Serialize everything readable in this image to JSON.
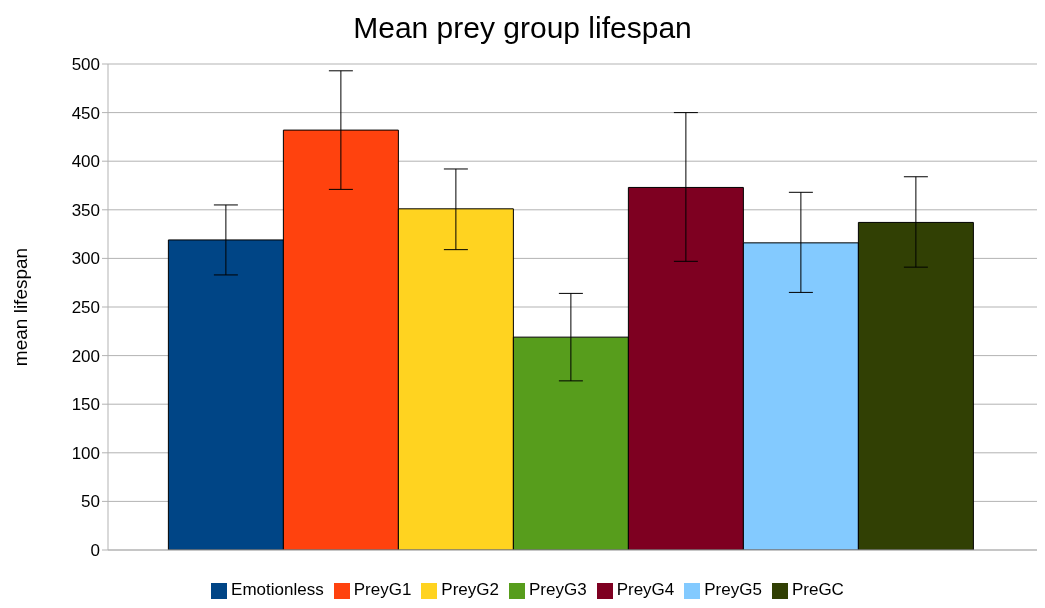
{
  "chart_data": {
    "type": "bar",
    "title": "Mean prey group lifespan",
    "ylabel": "mean lifespan",
    "categories": [
      null
    ],
    "series": [
      {
        "name": "Emotionless",
        "color": "#004586",
        "values": [
          319
        ],
        "errors": [
          [
            283,
            355
          ]
        ]
      },
      {
        "name": "PreyG1",
        "color": "#ff420e",
        "values": [
          432
        ],
        "errors": [
          [
            371,
            493
          ]
        ]
      },
      {
        "name": "PreyG2",
        "color": "#ffd320",
        "values": [
          351
        ],
        "errors": [
          [
            309,
            392
          ]
        ]
      },
      {
        "name": "PreyG3",
        "color": "#579d1c",
        "values": [
          219
        ],
        "errors": [
          [
            174,
            264
          ]
        ]
      },
      {
        "name": "PreyG4",
        "color": "#7e0021",
        "values": [
          373
        ],
        "errors": [
          [
            297,
            450
          ]
        ]
      },
      {
        "name": "PreyG5",
        "color": "#83caff",
        "values": [
          316
        ],
        "errors": [
          [
            265,
            368
          ]
        ]
      },
      {
        "name": "PreGC",
        "color": "#314004",
        "values": [
          337
        ],
        "errors": [
          [
            291,
            384
          ]
        ]
      }
    ],
    "ylim": [
      0,
      500
    ],
    "yticks": [
      0,
      50,
      100,
      150,
      200,
      250,
      300,
      350,
      400,
      450,
      500
    ],
    "grid": "y",
    "legend": "bottom"
  }
}
